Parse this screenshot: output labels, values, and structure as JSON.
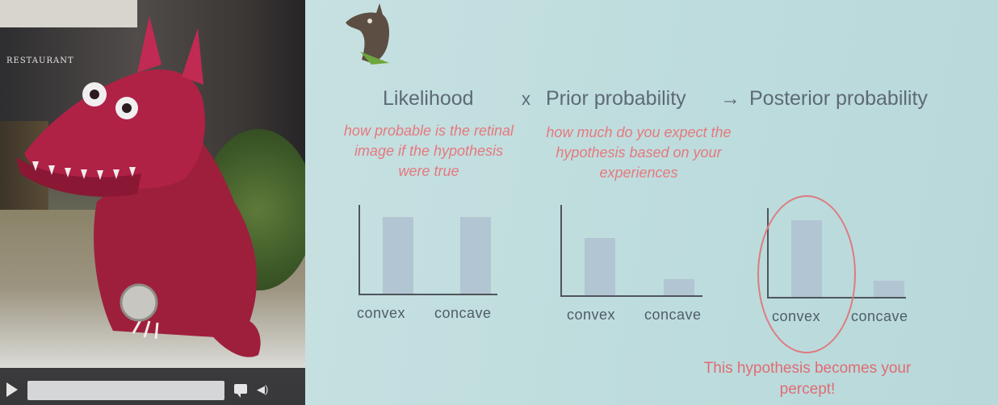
{
  "photo_panel": {
    "restaurant_sign": "RESTAURANT",
    "chinese_sign_1": "",
    "chinese_sign_2": "",
    "chinese_top_strip": ""
  },
  "slide": {
    "likelihood_title": "Likelihood",
    "times_symbol": "x",
    "prior_title": "Prior probability",
    "arrow_symbol": "→",
    "posterior_title": "Posterior probability",
    "likelihood_note": "how probable is the retinal image if the hypothesis were true",
    "prior_note": "how much do you expect the hypothesis based on your experiences",
    "percept_note": "This hypothesis becomes your percept!"
  },
  "chart_data": [
    {
      "type": "bar",
      "categories": [
        "convex",
        "concave"
      ],
      "values": [
        0.95,
        0.95
      ],
      "title": "",
      "xlabel": "",
      "ylabel": "",
      "ylim": [
        0,
        1.1
      ],
      "grid": false
    },
    {
      "type": "bar",
      "categories": [
        "convex",
        "concave"
      ],
      "values": [
        0.7,
        0.2
      ],
      "title": "",
      "xlabel": "",
      "ylabel": "",
      "ylim": [
        0,
        1.1
      ],
      "grid": false
    },
    {
      "type": "bar",
      "categories": [
        "convex",
        "concave"
      ],
      "values": [
        0.95,
        0.2
      ],
      "title": "",
      "xlabel": "",
      "ylabel": "",
      "ylim": [
        0,
        1.1
      ],
      "grid": false
    }
  ],
  "colors": {
    "bar": "#b2c5d2",
    "axis": "#4f555b",
    "accent_pink": "#e5797e",
    "title_text": "#5d6a76"
  }
}
